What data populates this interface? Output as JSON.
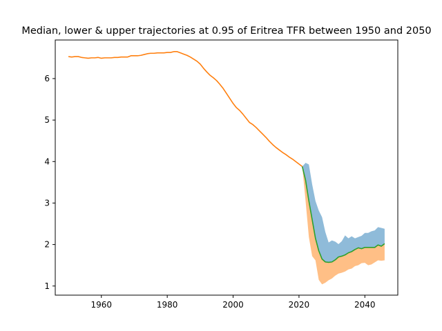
{
  "chart_data": {
    "type": "line",
    "title": "Median, lower & upper trajectories at 0.95 of Eritrea TFR between 1950 and 2050",
    "xlabel": "",
    "ylabel": "",
    "xlim": [
      1946,
      2050
    ],
    "ylim": [
      0.78,
      6.93
    ],
    "x_ticks": [
      1960,
      1980,
      2000,
      2020,
      2040
    ],
    "y_ticks": [
      1,
      2,
      3,
      4,
      5,
      6
    ],
    "grid": false,
    "legend": "none",
    "colors": {
      "history": "#ff7f0e",
      "median": "#2ca02c",
      "upper_band": "#1f77b4",
      "lower_band": "#ff7f0e"
    },
    "series": [
      {
        "role": "history",
        "x": [
          1950,
          1951,
          1952,
          1953,
          1954,
          1955,
          1956,
          1957,
          1958,
          1959,
          1960,
          1961,
          1962,
          1963,
          1964,
          1965,
          1966,
          1967,
          1968,
          1969,
          1970,
          1971,
          1972,
          1973,
          1974,
          1975,
          1976,
          1977,
          1978,
          1979,
          1980,
          1981,
          1982,
          1983,
          1984,
          1985,
          1986,
          1987,
          1988,
          1989,
          1990,
          1991,
          1992,
          1993,
          1994,
          1995,
          1996,
          1997,
          1998,
          1999,
          2000,
          2001,
          2002,
          2003,
          2004,
          2005,
          2006,
          2007,
          2008,
          2009,
          2010,
          2011,
          2012,
          2013,
          2014,
          2015,
          2016,
          2017,
          2018,
          2019,
          2020,
          2021
        ],
        "values": [
          6.53,
          6.52,
          6.53,
          6.53,
          6.51,
          6.5,
          6.49,
          6.5,
          6.5,
          6.51,
          6.49,
          6.5,
          6.5,
          6.5,
          6.51,
          6.51,
          6.52,
          6.52,
          6.52,
          6.55,
          6.55,
          6.55,
          6.56,
          6.58,
          6.6,
          6.61,
          6.61,
          6.62,
          6.62,
          6.62,
          6.63,
          6.63,
          6.65,
          6.65,
          6.62,
          6.59,
          6.56,
          6.52,
          6.47,
          6.42,
          6.35,
          6.25,
          6.16,
          6.08,
          6.02,
          5.95,
          5.86,
          5.76,
          5.64,
          5.52,
          5.4,
          5.3,
          5.23,
          5.14,
          5.04,
          4.94,
          4.89,
          4.82,
          4.74,
          4.66,
          4.58,
          4.49,
          4.41,
          4.34,
          4.28,
          4.22,
          4.17,
          4.11,
          4.06,
          4.0,
          3.94,
          3.88
        ]
      },
      {
        "role": "median",
        "x": [
          2021,
          2022,
          2023,
          2024,
          2025,
          2026,
          2027,
          2028,
          2029,
          2030,
          2031,
          2032,
          2033,
          2034,
          2035,
          2036,
          2037,
          2038,
          2039,
          2040,
          2041,
          2042,
          2043,
          2044,
          2045,
          2046
        ],
        "values": [
          3.88,
          3.55,
          3.05,
          2.6,
          2.15,
          1.85,
          1.65,
          1.58,
          1.57,
          1.58,
          1.63,
          1.7,
          1.72,
          1.75,
          1.8,
          1.83,
          1.88,
          1.92,
          1.9,
          1.93,
          1.93,
          1.93,
          1.93,
          1.99,
          1.96,
          2.02
        ]
      },
      {
        "role": "upper",
        "x": [
          2021,
          2022,
          2023,
          2024,
          2025,
          2026,
          2027,
          2028,
          2029,
          2030,
          2031,
          2032,
          2033,
          2034,
          2035,
          2036,
          2037,
          2038,
          2039,
          2040,
          2041,
          2042,
          2043,
          2044,
          2045,
          2046
        ],
        "values": [
          3.88,
          3.97,
          3.93,
          3.45,
          3.05,
          2.82,
          2.66,
          2.3,
          2.05,
          2.1,
          2.07,
          2.01,
          2.08,
          2.22,
          2.15,
          2.2,
          2.15,
          2.18,
          2.21,
          2.28,
          2.28,
          2.32,
          2.34,
          2.42,
          2.4,
          2.38
        ]
      },
      {
        "role": "lower",
        "x": [
          2021,
          2022,
          2023,
          2024,
          2025,
          2026,
          2027,
          2028,
          2029,
          2030,
          2031,
          2032,
          2033,
          2034,
          2035,
          2036,
          2037,
          2038,
          2039,
          2040,
          2041,
          2042,
          2043,
          2044,
          2045,
          2046
        ],
        "values": [
          3.88,
          3.05,
          2.18,
          1.72,
          1.62,
          1.15,
          1.04,
          1.08,
          1.14,
          1.18,
          1.25,
          1.3,
          1.32,
          1.35,
          1.4,
          1.42,
          1.48,
          1.5,
          1.55,
          1.56,
          1.5,
          1.52,
          1.57,
          1.62,
          1.61,
          1.62
        ]
      }
    ]
  }
}
